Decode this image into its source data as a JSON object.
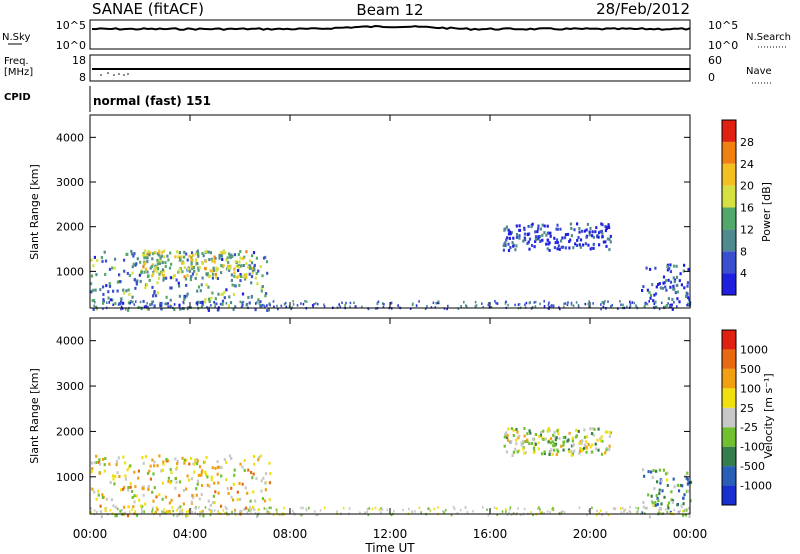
{
  "header": {
    "station": "SANAE (fitACF)",
    "beam": "Beam 12",
    "date": "28/Feb/2012"
  },
  "summary_panels": {
    "nsky_label": "N.Sky",
    "nsky_ticks": [
      "10^5",
      "10^0"
    ],
    "nsearch_label": "N.Search",
    "nsearch_ticks": [
      "10^5",
      "10^0"
    ],
    "freq_label_1": "Freq.",
    "freq_label_2": "[MHz]",
    "freq_ticks": [
      "18",
      "8"
    ],
    "nave_label": "Nave",
    "nave_ticks": [
      "60",
      "0"
    ],
    "cpid_label": "CPID",
    "cpid_value": "normal (fast) 151"
  },
  "colors": {
    "power_scale": [
      "#1f1fe0",
      "#3a4fd0",
      "#4f8a8f",
      "#52a86a",
      "#d6e040",
      "#f2c020",
      "#f08010",
      "#e02010"
    ],
    "velocity_scale": [
      "#1a2fd0",
      "#2a5fb8",
      "#357d4a",
      "#70c030",
      "#c8c8c8",
      "#f0e010",
      "#f0a010",
      "#e86a10",
      "#e02010"
    ]
  },
  "chart_data": [
    {
      "type": "heatmap",
      "title": "",
      "xlabel": "Time UT",
      "ylabel": "Slant Range [km]",
      "x_ticks": [
        "00:00",
        "04:00",
        "08:00",
        "12:00",
        "16:00",
        "20:00",
        "00:00"
      ],
      "xlim_hours": [
        0,
        24
      ],
      "y_ticks": [
        "4000",
        "3000",
        "2000",
        "1000"
      ],
      "ylim": [
        180,
        4500
      ],
      "colorbar_label": "Power [dB]",
      "colorbar_ticks": [
        "28",
        "24",
        "20",
        "16",
        "12",
        "8",
        "4"
      ],
      "colorbar_range": [
        0,
        30
      ],
      "grid": false,
      "scatter_regions": [
        {
          "t_start": 0.0,
          "t_end": 7.2,
          "range_km": [
            150,
            1500
          ],
          "value": 10
        },
        {
          "t_start": 2.0,
          "t_end": 6.5,
          "range_km": [
            900,
            1500
          ],
          "value": 16
        },
        {
          "t_start": 16.5,
          "t_end": 20.8,
          "range_km": [
            1500,
            2100
          ],
          "value": 4
        },
        {
          "t_start": 22.0,
          "t_end": 24.0,
          "range_km": [
            150,
            1200
          ],
          "value": 6
        }
      ]
    },
    {
      "type": "heatmap",
      "title": "",
      "xlabel": "Time UT",
      "ylabel": "Slant Range [km]",
      "x_ticks": [
        "00:00",
        "04:00",
        "08:00",
        "12:00",
        "16:00",
        "20:00",
        "00:00"
      ],
      "xlim_hours": [
        0,
        24
      ],
      "y_ticks": [
        "4000",
        "3000",
        "2000",
        "1000"
      ],
      "ylim": [
        180,
        4500
      ],
      "colorbar_label": "Velocity [m s⁻¹]",
      "colorbar_ticks": [
        "1000",
        "500",
        "100",
        "25",
        "-25",
        "-100",
        "-500",
        "-1000"
      ],
      "colorbar_range": [
        -1000,
        1000
      ],
      "grid": false,
      "scatter_regions": [
        {
          "t_start": 0.0,
          "t_end": 7.2,
          "range_km": [
            150,
            1500
          ],
          "value": 200
        },
        {
          "t_start": 16.5,
          "t_end": 20.8,
          "range_km": [
            1500,
            2100
          ],
          "value": 0
        },
        {
          "t_start": 22.0,
          "t_end": 24.0,
          "range_km": [
            150,
            1200
          ],
          "value": -300
        }
      ]
    }
  ]
}
